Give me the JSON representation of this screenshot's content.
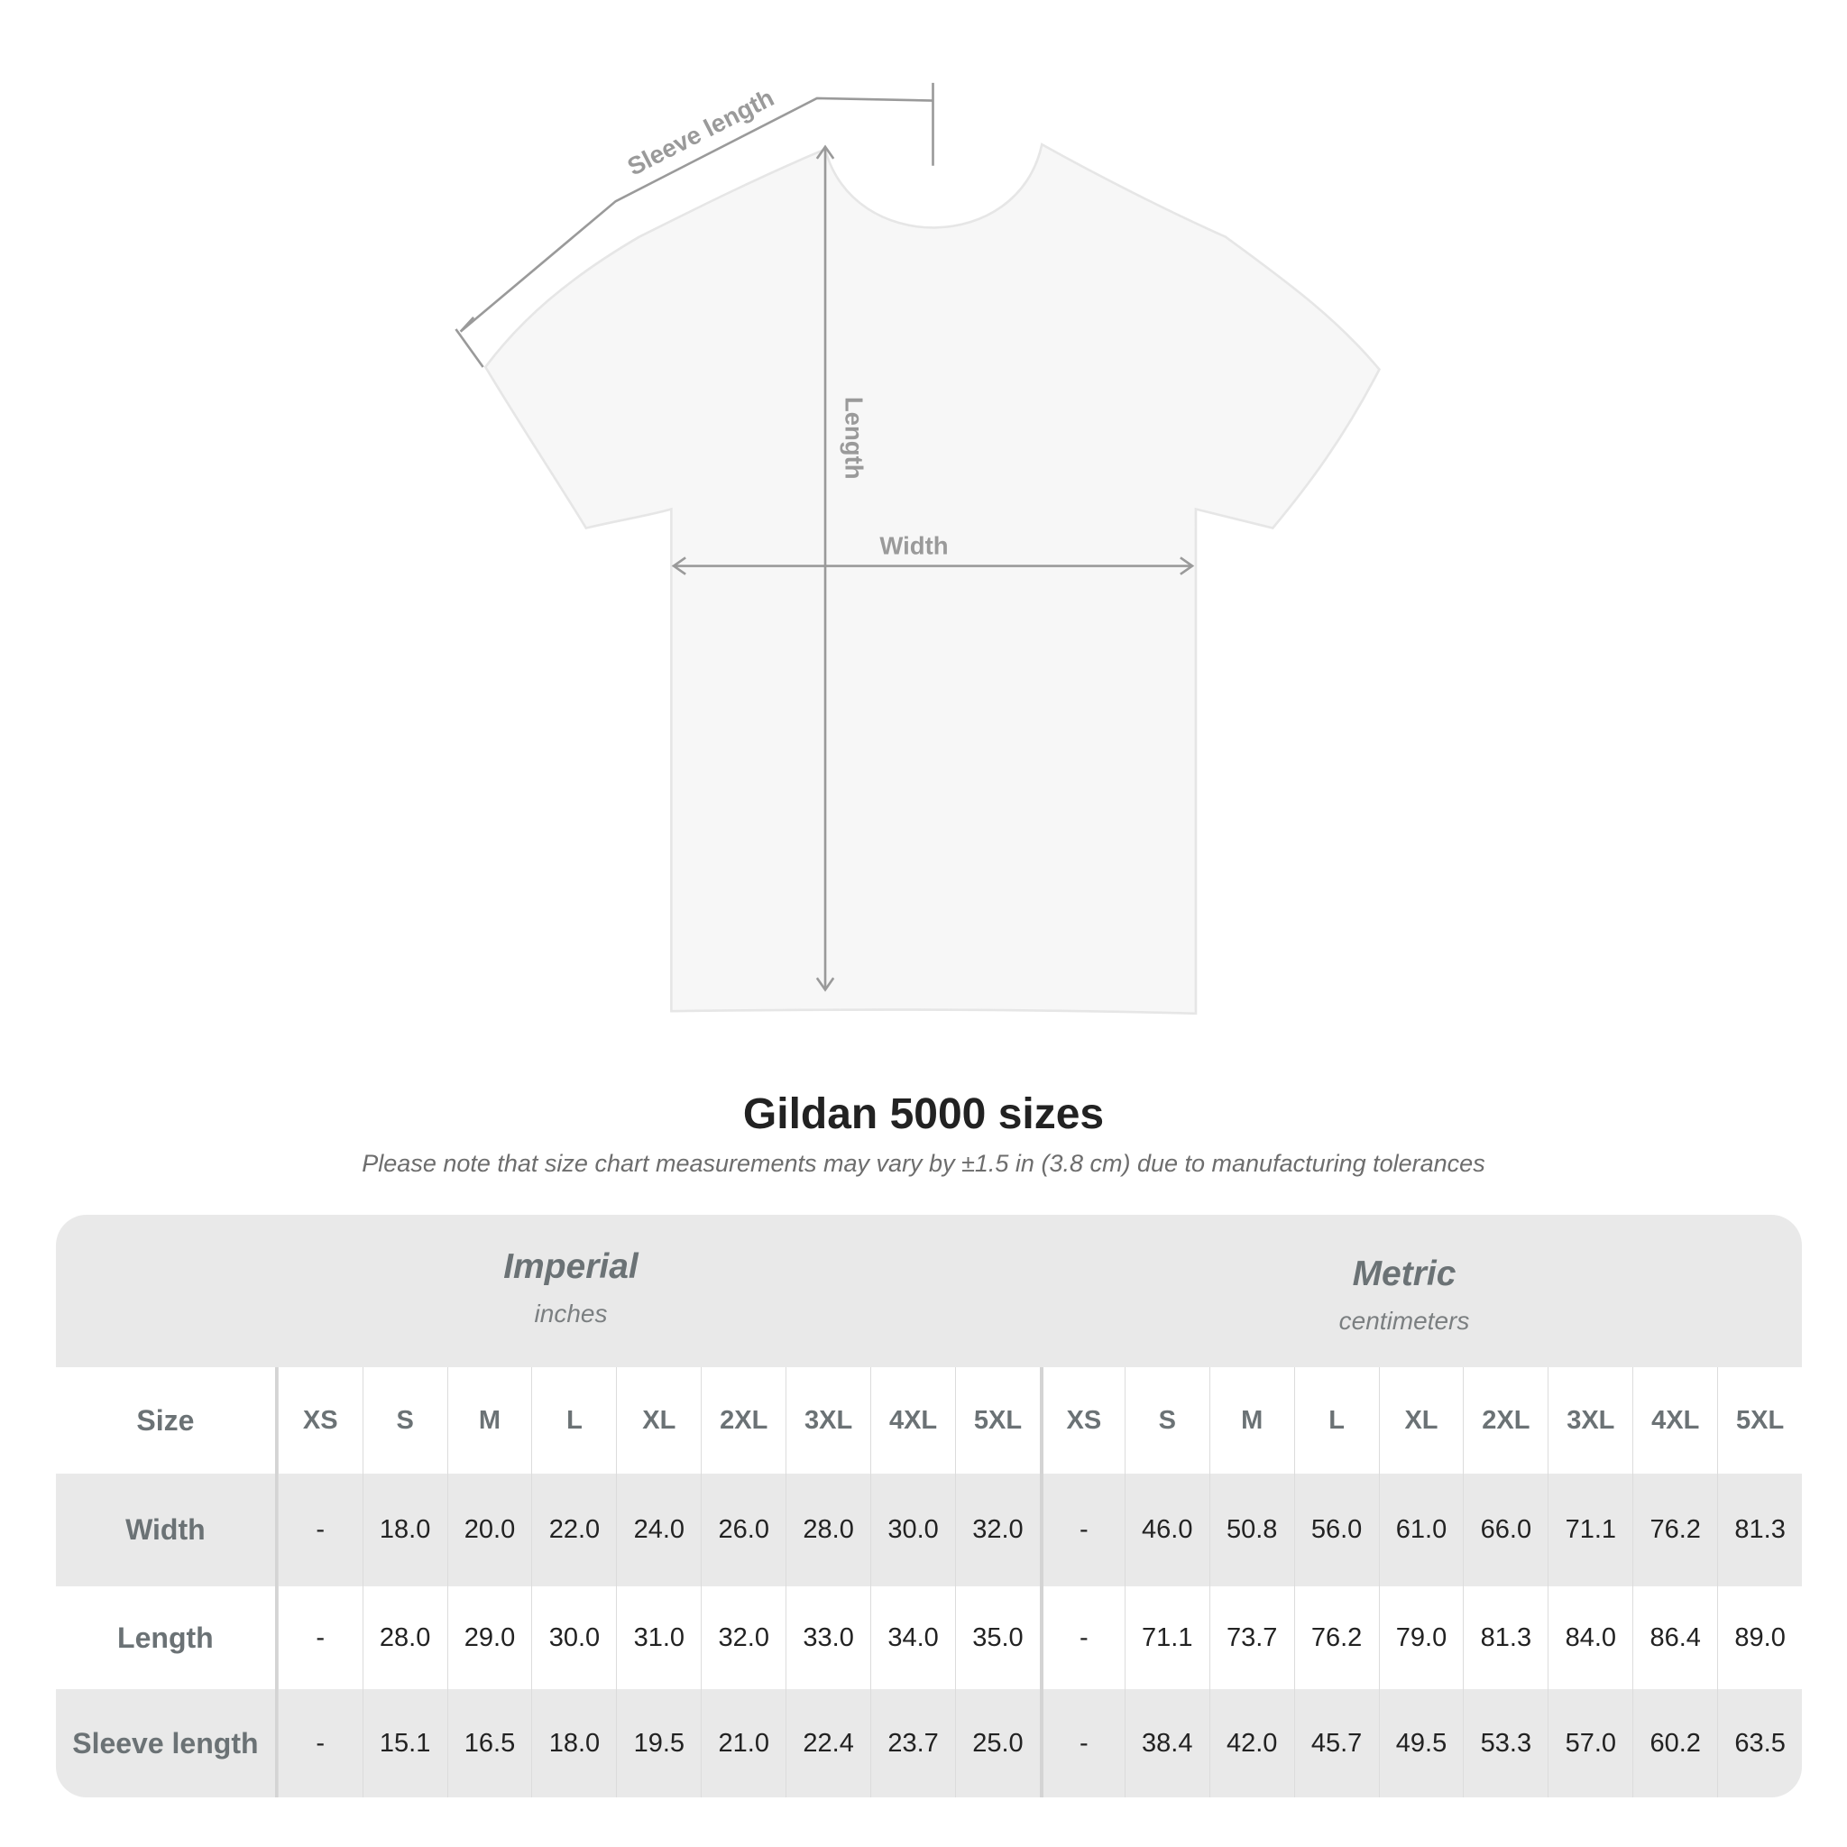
{
  "diagram": {
    "sleeve_label": "Sleeve length",
    "length_label": "Length",
    "width_label": "Width"
  },
  "title": "Gildan 5000 sizes",
  "note": "Please note that size chart measurements may vary by ±1.5 in (3.8 cm) due to manufacturing tolerances",
  "imperial": {
    "name": "Imperial",
    "unit": "inches"
  },
  "metric": {
    "name": "Metric",
    "unit": "centimeters"
  },
  "size_label": "Size",
  "sizes": [
    "XS",
    "S",
    "M",
    "L",
    "XL",
    "2XL",
    "3XL",
    "4XL",
    "5XL"
  ],
  "rows": [
    {
      "label": "Width",
      "imperial": [
        "-",
        "18.0",
        "20.0",
        "22.0",
        "24.0",
        "26.0",
        "28.0",
        "30.0",
        "32.0"
      ],
      "metric": [
        "-",
        "46.0",
        "50.8",
        "56.0",
        "61.0",
        "66.0",
        "71.1",
        "76.2",
        "81.3"
      ]
    },
    {
      "label": "Length",
      "imperial": [
        "-",
        "28.0",
        "29.0",
        "30.0",
        "31.0",
        "32.0",
        "33.0",
        "34.0",
        "35.0"
      ],
      "metric": [
        "-",
        "71.1",
        "73.7",
        "76.2",
        "79.0",
        "81.3",
        "84.0",
        "86.4",
        "89.0"
      ]
    },
    {
      "label": "Sleeve length",
      "imperial": [
        "-",
        "15.1",
        "16.5",
        "18.0",
        "19.5",
        "21.0",
        "22.4",
        "23.7",
        "25.0"
      ],
      "metric": [
        "-",
        "38.4",
        "42.0",
        "45.7",
        "49.5",
        "53.3",
        "57.0",
        "60.2",
        "63.5"
      ]
    }
  ],
  "colors": {
    "band": "#e9e9e9",
    "header_text": "#6b7275",
    "value_text": "#222222",
    "measure_line": "#9a9a9a"
  }
}
